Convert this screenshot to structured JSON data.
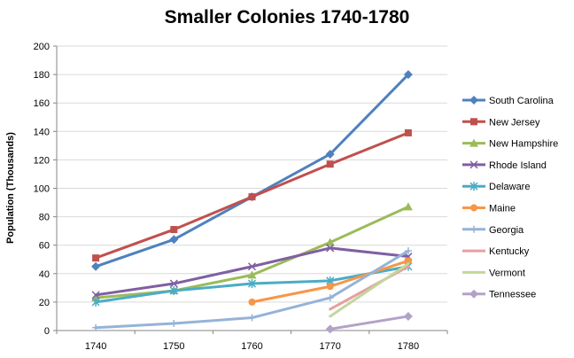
{
  "chart_data": {
    "type": "line",
    "title": "Smaller Colonies 1740-1780",
    "xlabel": "",
    "ylabel": "Population (Thousands)",
    "ylim": [
      0,
      200
    ],
    "yticks": [
      0,
      20,
      40,
      60,
      80,
      100,
      120,
      140,
      160,
      180,
      200
    ],
    "categories": [
      "1740",
      "1750",
      "1760",
      "1770",
      "1780"
    ],
    "grid": "horizontal major gridlines, light gray",
    "legend_position": "right",
    "series": [
      {
        "name": "South Carolina",
        "color": "#4F81BD",
        "marker": "diamond",
        "values": [
          45,
          64,
          94,
          124,
          180
        ]
      },
      {
        "name": "New Jersey",
        "color": "#C0504D",
        "marker": "square",
        "values": [
          51,
          71,
          94,
          117,
          139
        ]
      },
      {
        "name": "New Hampshire",
        "color": "#9BBB59",
        "marker": "triangle",
        "values": [
          23,
          28,
          39,
          62,
          87
        ]
      },
      {
        "name": "Rhode Island",
        "color": "#7F5FA1",
        "marker": "x",
        "values": [
          25,
          33,
          45,
          58,
          52
        ]
      },
      {
        "name": "Delaware",
        "color": "#4BACC6",
        "marker": "star",
        "values": [
          20,
          28,
          33,
          35,
          45
        ]
      },
      {
        "name": "Maine",
        "color": "#F79646",
        "marker": "circle",
        "values": [
          null,
          null,
          20,
          31,
          49
        ]
      },
      {
        "name": "Georgia",
        "color": "#95B3D7",
        "marker": "plus",
        "values": [
          2,
          5,
          9,
          23,
          56
        ]
      },
      {
        "name": "Kentucky",
        "color": "#E6A0A0",
        "marker": "none",
        "values": [
          null,
          null,
          null,
          15,
          45
        ]
      },
      {
        "name": "Vermont",
        "color": "#C3D69B",
        "marker": "none",
        "values": [
          null,
          null,
          null,
          10,
          47
        ]
      },
      {
        "name": "Tennessee",
        "color": "#B3A2C7",
        "marker": "diamond",
        "values": [
          null,
          null,
          null,
          1,
          10
        ]
      }
    ]
  }
}
